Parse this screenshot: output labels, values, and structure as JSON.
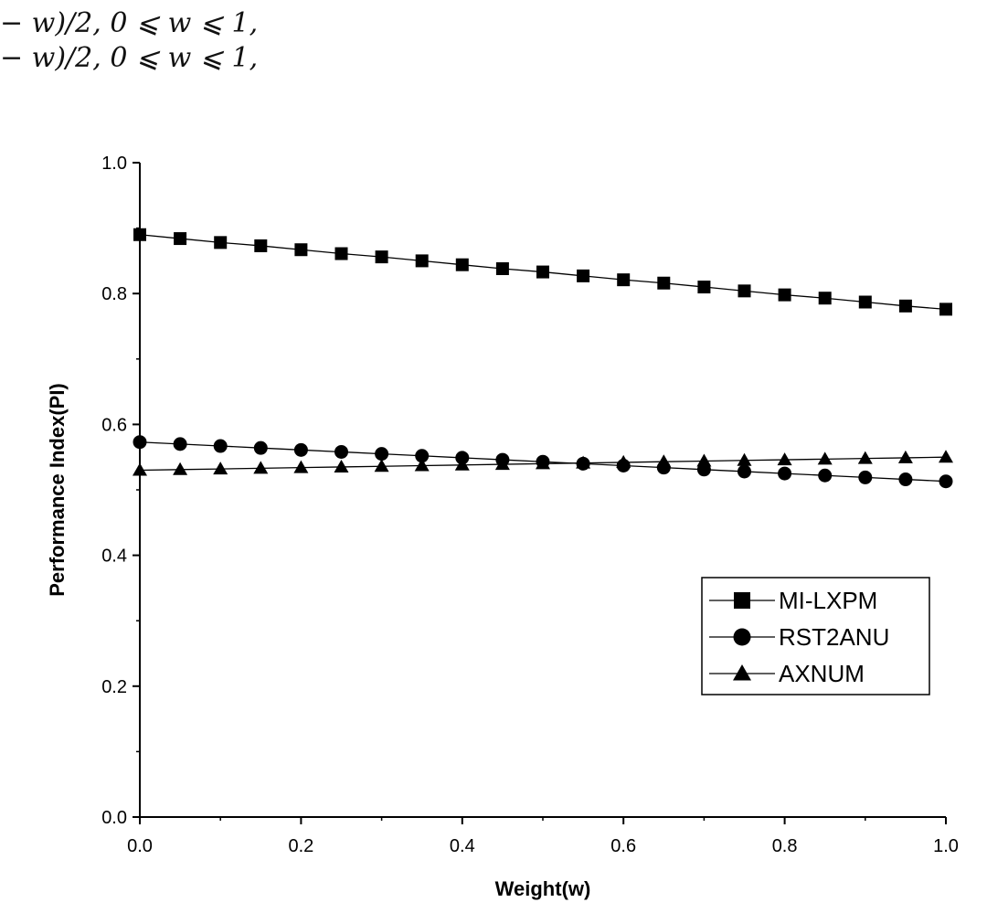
{
  "header_text": {
    "line1": "− w)/2, 0 ⩽ w ⩽ 1,",
    "line2": "− w)/2, 0 ⩽ w ⩽ 1,"
  },
  "chart_data": {
    "type": "line",
    "xlabel": "Weight(w)",
    "ylabel": "Performance Index(PI)",
    "xlim": [
      0.0,
      1.0
    ],
    "ylim": [
      0.0,
      1.0
    ],
    "x_ticks": [
      "0.0",
      "0.2",
      "0.4",
      "0.6",
      "0.8",
      "1.0"
    ],
    "y_ticks": [
      "0.0",
      "0.2",
      "0.4",
      "0.6",
      "0.8",
      "1.0"
    ],
    "grid": false,
    "legend_position": "lower-right",
    "x": [
      0.0,
      0.05,
      0.1,
      0.15,
      0.2,
      0.25,
      0.3,
      0.35,
      0.4,
      0.45,
      0.5,
      0.55,
      0.6,
      0.65,
      0.7,
      0.75,
      0.8,
      0.85,
      0.9,
      0.95,
      1.0
    ],
    "series": [
      {
        "name": "MI-LXPM",
        "marker": "square",
        "values": [
          0.89,
          0.884,
          0.878,
          0.873,
          0.867,
          0.861,
          0.856,
          0.85,
          0.844,
          0.838,
          0.833,
          0.827,
          0.821,
          0.816,
          0.81,
          0.804,
          0.798,
          0.793,
          0.787,
          0.781,
          0.776
        ]
      },
      {
        "name": "RST2ANU",
        "marker": "circle",
        "values": [
          0.573,
          0.57,
          0.567,
          0.564,
          0.561,
          0.558,
          0.555,
          0.552,
          0.549,
          0.546,
          0.543,
          0.54,
          0.537,
          0.534,
          0.531,
          0.528,
          0.525,
          0.522,
          0.519,
          0.516,
          0.513
        ]
      },
      {
        "name": "AXNUM",
        "marker": "triangle",
        "values": [
          0.53,
          0.531,
          0.532,
          0.533,
          0.534,
          0.535,
          0.536,
          0.537,
          0.538,
          0.539,
          0.54,
          0.541,
          0.542,
          0.543,
          0.544,
          0.545,
          0.546,
          0.547,
          0.548,
          0.549,
          0.55
        ]
      }
    ]
  }
}
